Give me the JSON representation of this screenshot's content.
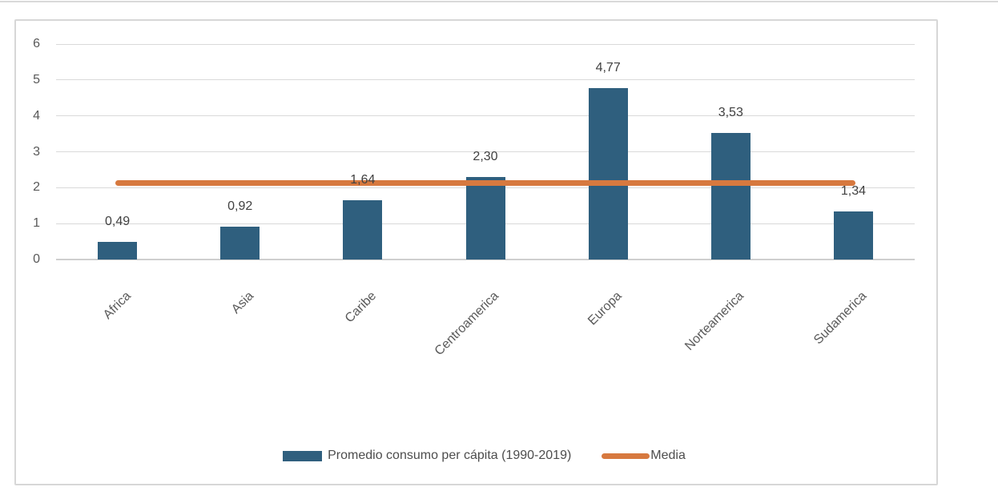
{
  "chart_data": {
    "type": "bar",
    "categories": [
      "Africa",
      "Asia",
      "Caribe",
      "Centroamerica",
      "Europa",
      "Norteamerica",
      "Sudamerica"
    ],
    "series": [
      {
        "name": "Promedio consumo per cápita (1990-2019)",
        "type": "bar",
        "values": [
          0.49,
          0.92,
          1.64,
          2.3,
          4.77,
          3.53,
          1.34
        ]
      },
      {
        "name": "Media",
        "type": "line",
        "value": 2.14
      }
    ],
    "value_labels": [
      "0,49",
      "0,92",
      "1,64",
      "2,30",
      "4,77",
      "3,53",
      "1,34"
    ],
    "y_ticks": [
      "0",
      "1",
      "2",
      "3",
      "4",
      "5",
      "6"
    ],
    "ylim": [
      0,
      6
    ],
    "grid": true,
    "legend_position": "bottom",
    "decimal_separator": ","
  },
  "colors": {
    "bar": "#2f5f7e",
    "line": "#d7793f",
    "grid": "#d9d9d9",
    "axis_line": "#cfcfcf",
    "tick_text": "#595959",
    "category_text": "#595959",
    "value_text": "#404040",
    "legend_text": "#4d4d4d",
    "frame_border": "#d7d7d7",
    "top_rule": "#d9d9d9",
    "background": "#ffffff"
  }
}
